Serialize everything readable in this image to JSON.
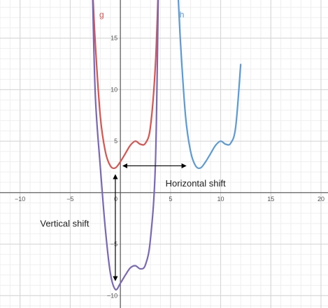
{
  "chart_data": {
    "type": "line",
    "title": "",
    "xlabel": "",
    "ylabel": "",
    "xlim": [
      -12,
      20.7
    ],
    "ylim": [
      -11.2,
      18.7
    ],
    "grid": true,
    "x_ticks": [
      -10,
      -5,
      0,
      5,
      10,
      15,
      20
    ],
    "y_ticks": [
      -10,
      -5,
      5,
      10,
      15
    ],
    "x_tick_labels": [
      "−10",
      "−5",
      "0",
      "5",
      "10",
      "15",
      "20"
    ],
    "y_tick_labels": [
      "−10",
      "−5",
      "5",
      "10",
      "15"
    ],
    "series": [
      {
        "name": "g",
        "color": "#d9534f",
        "x": [
          -2.8,
          -2.5,
          -2.0,
          -1.5,
          -1.0,
          -0.5,
          0.0,
          0.5,
          1.0,
          1.5,
          2.0,
          2.5,
          3.0,
          3.5,
          3.8
        ],
        "y": [
          20.5,
          14.5,
          7.4,
          4.0,
          2.6,
          2.4,
          3.0,
          3.8,
          4.6,
          5.0,
          4.7,
          4.8,
          6.4,
          12.5,
          20.5
        ]
      },
      {
        "name": "h",
        "color": "#5b9bd5",
        "x": [
          5.7,
          6.0,
          6.5,
          7.0,
          7.5,
          8.0,
          8.5,
          9.0,
          9.5,
          10.0,
          10.5,
          11.0,
          11.5,
          12.0
        ],
        "y": [
          20.5,
          14.5,
          7.4,
          4.0,
          2.6,
          2.4,
          3.0,
          3.8,
          4.6,
          5.0,
          4.7,
          4.8,
          6.4,
          12.5
        ]
      },
      {
        "name": "",
        "color": "#7b68b5",
        "x": [
          -2.8,
          -2.5,
          -2.0,
          -1.5,
          -1.0,
          -0.5,
          0.0,
          0.5,
          1.0,
          1.5,
          2.0,
          2.5,
          3.0,
          3.5,
          3.8
        ],
        "y": [
          20.5,
          9.5,
          2.5,
          -3.5,
          -7.8,
          -9.4,
          -8.8,
          -8.0,
          -7.3,
          -7.1,
          -7.4,
          -7.0,
          -4.5,
          3.0,
          20.5
        ]
      }
    ],
    "curve_labels": [
      {
        "text": "g",
        "x": -2.1,
        "y": 17.0,
        "color": "#d9534f"
      },
      {
        "text": "h",
        "x": 5.9,
        "y": 17.0,
        "color": "#5b9bd5"
      }
    ],
    "annotations": [
      {
        "text": "Horizontal shift",
        "x": 4.5,
        "y": 0.6
      },
      {
        "text": "Vertical shift",
        "x": -8.0,
        "y": -3.3
      }
    ],
    "arrows": [
      {
        "name": "horizontal-shift-arrow",
        "from": [
          0.3,
          2.6
        ],
        "to": [
          6.5,
          2.6
        ]
      },
      {
        "name": "vertical-shift-arrow",
        "from": [
          -0.5,
          1.7
        ],
        "to": [
          -0.5,
          -8.5
        ]
      }
    ]
  }
}
